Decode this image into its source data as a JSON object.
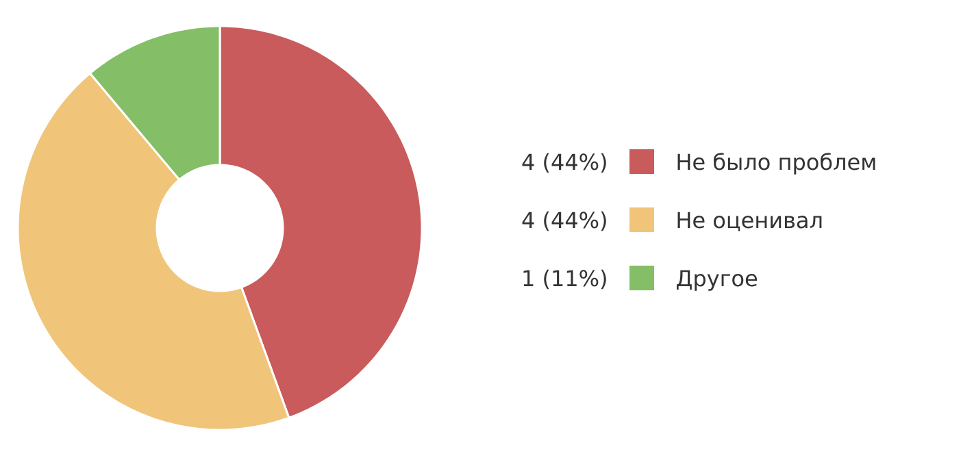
{
  "chart_data": {
    "type": "donut",
    "categories": [
      "Не было проблем",
      "Не оценивал",
      "Другое"
    ],
    "values": [
      4,
      4,
      1
    ],
    "colors": [
      "#c95b5c",
      "#f0c57a",
      "#84be66"
    ],
    "value_labels": [
      "4 (44%)",
      "4 (44%)",
      "1 (11%)"
    ],
    "legend": "right"
  }
}
